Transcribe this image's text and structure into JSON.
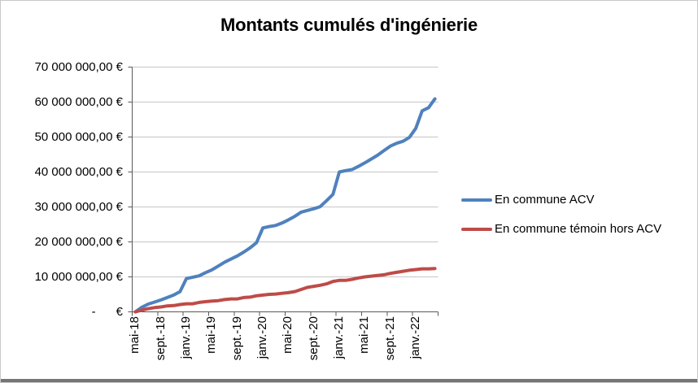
{
  "window": {
    "background": "#FFFFFF",
    "border_color": "#C9C9C9",
    "bottom_edge_color": "#757575"
  },
  "chart_data": {
    "type": "line",
    "title": "Montants cumulés d'ingénierie",
    "xlabel": "",
    "ylabel": "",
    "ylim": [
      0,
      70000000
    ],
    "y_step": 10000000,
    "grid": "horizontal-on",
    "legend_position": "right",
    "y_tick_labels": [
      "-      €",
      "10 000 000,00 €",
      "20 000 000,00 €",
      "30 000 000,00 €",
      "40 000 000,00 €",
      "50 000 000,00 €",
      "60 000 000,00 €",
      "70 000 000,00 €"
    ],
    "x_tick_labels": [
      "mai-18",
      "sept.-18",
      "janv.-19",
      "mai-19",
      "sept.-19",
      "janv.-20",
      "mai-20",
      "sept.-20",
      "janv.-21",
      "mai-21",
      "sept.-21",
      "janv.-22"
    ],
    "x": [
      "mai-18",
      "juin-18",
      "juil.-18",
      "août-18",
      "sept.-18",
      "oct.-18",
      "nov.-18",
      "déc.-18",
      "janv.-19",
      "févr.-19",
      "mars-19",
      "avr.-19",
      "mai-19",
      "juin-19",
      "juil.-19",
      "août-19",
      "sept.-19",
      "oct.-19",
      "nov.-19",
      "déc.-19",
      "janv.-20",
      "févr.-20",
      "mars-20",
      "avr.-20",
      "mai-20",
      "juin-20",
      "juil.-20",
      "août-20",
      "sept.-20",
      "oct.-20",
      "nov.-20",
      "déc.-20",
      "janv.-21",
      "févr.-21",
      "mars-21",
      "avr.-21",
      "mai-21",
      "juin-21",
      "juil.-21",
      "août-21",
      "sept.-21",
      "oct.-21",
      "nov.-21",
      "déc.-21",
      "janv.-22",
      "févr.-22",
      "mars-22",
      "avr.-22"
    ],
    "series": [
      {
        "name": "En commune ACV",
        "color": "#4F81BD",
        "values": [
          0,
          1300000,
          2200000,
          2800000,
          3400000,
          4100000,
          4800000,
          5800000,
          9500000,
          9900000,
          10300000,
          11200000,
          12000000,
          13100000,
          14200000,
          15100000,
          16000000,
          17100000,
          18300000,
          19800000,
          24000000,
          24400000,
          24700000,
          25400000,
          26300000,
          27300000,
          28500000,
          29000000,
          29500000,
          30100000,
          31800000,
          33600000,
          40000000,
          40400000,
          40700000,
          41600000,
          42600000,
          43700000,
          44800000,
          46100000,
          47400000,
          48200000,
          48800000,
          49900000,
          52500000,
          57500000,
          58400000,
          60900000
        ]
      },
      {
        "name": "En commune témoin hors ACV",
        "color": "#BE4B48",
        "values": [
          0,
          500000,
          900000,
          1200000,
          1400000,
          1700000,
          1800000,
          2100000,
          2300000,
          2300000,
          2700000,
          2900000,
          3100000,
          3200000,
          3500000,
          3700000,
          3700000,
          4100000,
          4200000,
          4600000,
          4800000,
          5000000,
          5100000,
          5300000,
          5500000,
          5800000,
          6400000,
          7000000,
          7300000,
          7600000,
          8000000,
          8700000,
          9000000,
          9000000,
          9300000,
          9700000,
          10000000,
          10200000,
          10400000,
          10600000,
          11000000,
          11300000,
          11600000,
          11900000,
          12100000,
          12300000,
          12300000,
          12400000
        ]
      }
    ],
    "axis_color": "#595959",
    "gridline_color": "#C6C6C6"
  }
}
